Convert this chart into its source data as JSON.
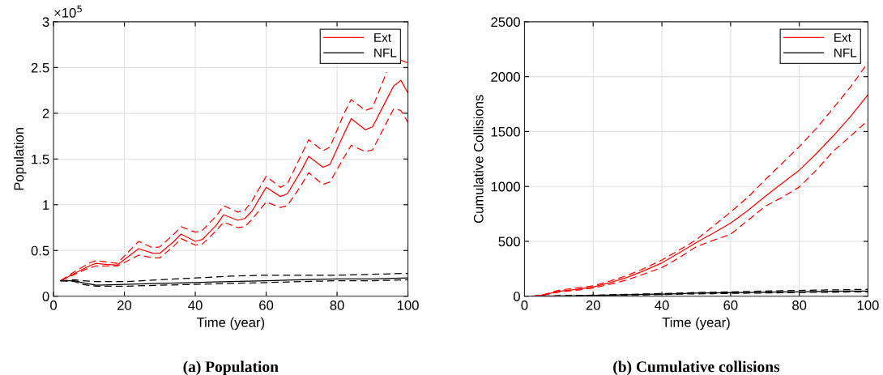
{
  "chart_data": [
    {
      "type": "line",
      "title": "(a) Population",
      "xlabel": "Time (year)",
      "ylabel": "Population",
      "annotations": [
        "×10$^{5}$"
      ],
      "xlim": [
        0,
        100
      ],
      "xticks": [
        0,
        20,
        40,
        60,
        80,
        100
      ],
      "ylim": [
        0,
        3
      ],
      "yticks": [
        0,
        0.5,
        1,
        1.5,
        2,
        2.5,
        3
      ],
      "grid": true,
      "legend": "top right",
      "series": [
        {
          "name": "Ext",
          "color": "#ff0000",
          "line_style": "solid",
          "x": [
            2,
            6,
            10,
            12,
            14,
            18,
            20,
            24,
            28,
            30,
            34,
            36,
            40,
            42,
            46,
            48,
            52,
            54,
            56,
            60,
            64,
            66,
            70,
            72,
            76,
            78,
            82,
            84,
            88,
            90,
            94,
            96,
            98,
            100
          ],
          "values": [
            0.17,
            0.25,
            0.33,
            0.36,
            0.35,
            0.34,
            0.4,
            0.52,
            0.47,
            0.47,
            0.6,
            0.68,
            0.6,
            0.62,
            0.78,
            0.89,
            0.83,
            0.85,
            0.93,
            1.19,
            1.09,
            1.12,
            1.38,
            1.53,
            1.41,
            1.44,
            1.78,
            1.94,
            1.82,
            1.85,
            2.15,
            2.3,
            2.36,
            2.22
          ]
        },
        {
          "color": "#ff0000",
          "line_style": "dashed",
          "x": [
            2,
            6,
            10,
            12,
            14,
            18,
            20,
            24,
            28,
            30,
            34,
            36,
            40,
            42,
            46,
            48,
            52,
            54,
            56,
            60,
            64,
            66,
            70,
            72,
            76,
            78,
            82,
            84,
            88,
            90,
            94,
            96,
            98,
            100
          ],
          "values": [
            0.17,
            0.27,
            0.36,
            0.39,
            0.38,
            0.36,
            0.44,
            0.6,
            0.53,
            0.54,
            0.68,
            0.76,
            0.7,
            0.72,
            0.88,
            0.99,
            0.92,
            0.94,
            1.04,
            1.31,
            1.19,
            1.23,
            1.55,
            1.71,
            1.59,
            1.63,
            2.0,
            2.15,
            2.03,
            2.06,
            2.45,
            null,
            2.58,
            2.55
          ]
        },
        {
          "color": "#ff0000",
          "line_style": "dashed",
          "x": [
            2,
            6,
            10,
            12,
            14,
            18,
            20,
            24,
            28,
            30,
            34,
            36,
            40,
            42,
            46,
            48,
            52,
            54,
            56,
            60,
            64,
            66,
            70,
            72,
            76,
            78,
            82,
            84,
            88,
            90,
            94,
            96,
            98,
            100
          ],
          "values": [
            0.17,
            0.24,
            0.31,
            0.33,
            0.33,
            0.33,
            0.37,
            0.45,
            0.42,
            0.42,
            0.55,
            0.63,
            0.56,
            0.57,
            0.72,
            0.81,
            0.75,
            0.76,
            0.84,
            1.03,
            0.97,
            0.99,
            1.22,
            1.35,
            1.22,
            1.25,
            1.52,
            1.65,
            1.58,
            1.6,
            1.9,
            2.05,
            2.03,
            1.9
          ]
        },
        {
          "name": "NFL",
          "color": "#000000",
          "line_style": "solid",
          "x": [
            2,
            6,
            8,
            12,
            20,
            30,
            40,
            50,
            60,
            70,
            80,
            90,
            100
          ],
          "values": [
            0.17,
            0.17,
            0.15,
            0.12,
            0.13,
            0.14,
            0.15,
            0.16,
            0.17,
            0.18,
            0.19,
            0.19,
            0.2
          ]
        },
        {
          "color": "#000000",
          "line_style": "dashed",
          "x": [
            2,
            6,
            8,
            12,
            20,
            30,
            40,
            50,
            60,
            70,
            80,
            90,
            100
          ],
          "values": [
            0.17,
            0.18,
            0.17,
            0.16,
            0.16,
            0.18,
            0.2,
            0.22,
            0.23,
            0.23,
            0.23,
            0.24,
            0.25
          ]
        },
        {
          "color": "#000000",
          "line_style": "dashed",
          "x": [
            2,
            6,
            8,
            12,
            20,
            30,
            40,
            50,
            60,
            70,
            80,
            90,
            100
          ],
          "values": [
            0.17,
            0.16,
            0.13,
            0.11,
            0.11,
            0.12,
            0.13,
            0.14,
            0.15,
            0.16,
            0.17,
            0.17,
            0.18
          ]
        }
      ]
    },
    {
      "type": "line",
      "title": "(b) Cumulative collisions",
      "xlabel": "Time (year)",
      "ylabel": "Cumulative Collisions",
      "xlim": [
        0,
        100
      ],
      "xticks": [
        0,
        20,
        40,
        60,
        80,
        100
      ],
      "ylim": [
        0,
        2500
      ],
      "yticks": [
        0,
        500,
        1000,
        1500,
        2000,
        2500
      ],
      "grid": true,
      "legend": "top right",
      "x": [
        2,
        5,
        10,
        15,
        20,
        25,
        30,
        35,
        40,
        45,
        50,
        55,
        60,
        65,
        70,
        75,
        80,
        85,
        90,
        95,
        100
      ],
      "series": [
        {
          "name": "Ext",
          "color": "#ff0000",
          "line_style": "solid",
          "values": [
            0,
            8,
            45,
            62,
            84,
            125,
            172,
            235,
            304,
            395,
            489,
            575,
            666,
            780,
            907,
            1030,
            1148,
            1300,
            1464,
            1640,
            1836
          ]
        },
        {
          "color": "#ff0000",
          "line_style": "dashed",
          "values": [
            0,
            10,
            55,
            75,
            95,
            140,
            190,
            255,
            330,
            420,
            514,
            640,
            767,
            900,
            1059,
            1210,
            1362,
            1530,
            1717,
            1910,
            2128
          ]
        },
        {
          "color": "#ff0000",
          "line_style": "dashed",
          "values": [
            0,
            6,
            38,
            55,
            75,
            110,
            150,
            205,
            261,
            350,
            451,
            510,
            565,
            690,
            818,
            900,
            995,
            1150,
            1324,
            1460,
            1603
          ]
        },
        {
          "name": "NFL",
          "color": "#000000",
          "line_style": "solid",
          "values": [
            0,
            1,
            3,
            5,
            8,
            11,
            14,
            17,
            20,
            24,
            28,
            30,
            32,
            35,
            37,
            39,
            40,
            43,
            45,
            47,
            48
          ]
        },
        {
          "color": "#000000",
          "line_style": "dashed",
          "values": [
            0,
            1,
            4,
            7,
            10,
            14,
            17,
            21,
            25,
            29,
            34,
            37,
            40,
            44,
            47,
            50,
            53,
            56,
            58,
            61,
            63
          ]
        },
        {
          "color": "#000000",
          "line_style": "dashed",
          "values": [
            0,
            1,
            2,
            4,
            6,
            8,
            11,
            13,
            16,
            19,
            22,
            24,
            26,
            28,
            30,
            32,
            34,
            36,
            37,
            39,
            40
          ]
        }
      ]
    }
  ]
}
